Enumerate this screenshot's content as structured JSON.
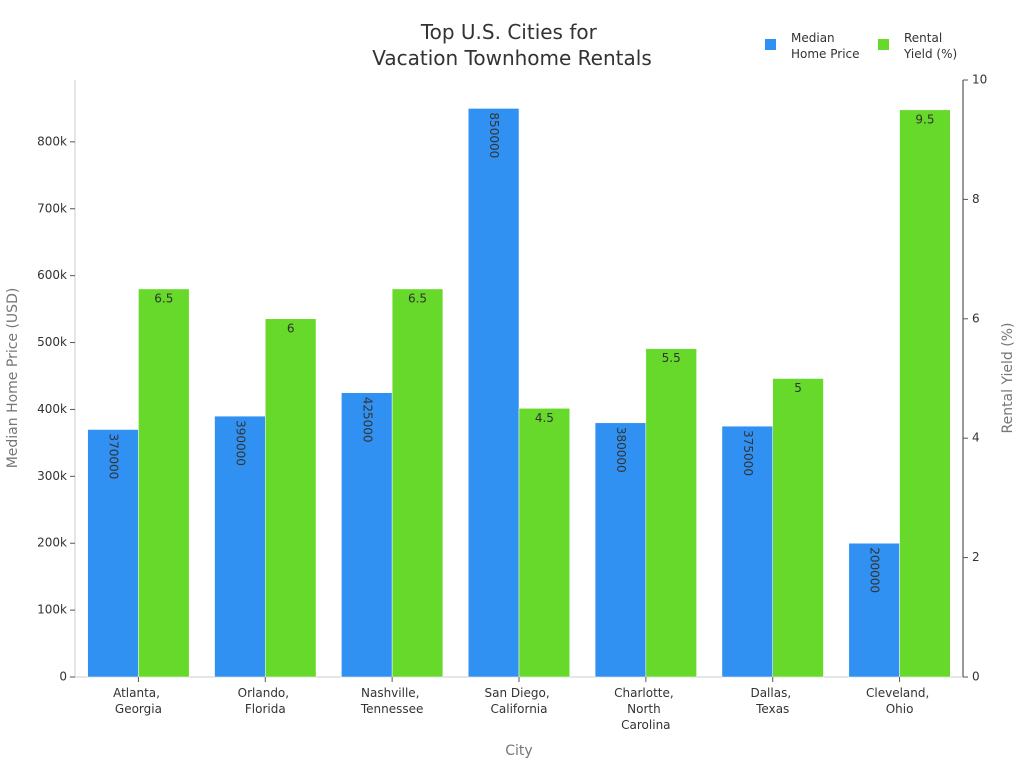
{
  "chart_data": {
    "type": "bar",
    "title": "Top U.S. Cities for Vacation Townhome Rentals",
    "x_label": "City",
    "y_label": "Median Home Price (USD)",
    "y2_label": "Rental Yield (%)",
    "categories": [
      "Atlanta, Georgia",
      "Orlando, Florida",
      "Nashville, Tennessee",
      "San Diego, California",
      "Charlotte, North Carolina",
      "Dallas, Texas",
      "Cleveland, Ohio"
    ],
    "series": [
      {
        "name": "Median Home Price",
        "color": "#3091f2",
        "values": [
          370000,
          390000,
          425000,
          850000,
          380000,
          375000,
          200000
        ]
      },
      {
        "name": "Rental Yield (%)",
        "color": "#66d92a",
        "axis": "y2",
        "values": [
          6.5,
          6,
          6.5,
          4.5,
          5.5,
          5,
          9.5
        ]
      }
    ],
    "ylim": [
      0,
      892500
    ],
    "yticks": [
      0,
      {
        "value": 100000,
        "label": "100k"
      },
      {
        "value": 200000,
        "label": "200k"
      },
      {
        "value": 300000,
        "label": "300k"
      },
      {
        "value": 400000,
        "label": "400k"
      },
      {
        "value": 500000,
        "label": "500k"
      },
      {
        "value": 600000,
        "label": "600k"
      },
      {
        "value": 700000,
        "label": "700k"
      },
      {
        "value": 800000,
        "label": "800k"
      }
    ],
    "y2lim": [
      0,
      10
    ],
    "y2ticks": [
      0,
      2,
      4,
      6,
      8,
      10
    ],
    "legend": "top-right"
  }
}
